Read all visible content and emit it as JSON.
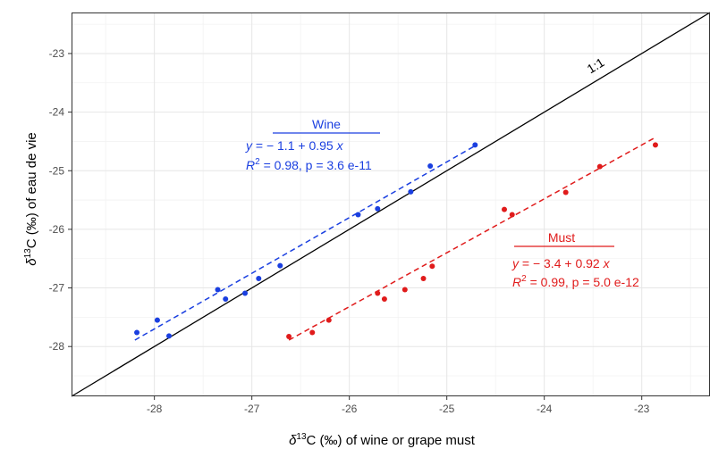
{
  "chart_data": {
    "type": "scatter",
    "xlabel_prefix": "δ",
    "xlabel_sup": "13",
    "xlabel_rest": "C (‰) of wine or grape must",
    "ylabel_prefix": "δ",
    "ylabel_sup": "13",
    "ylabel_rest": "C (‰) of eau de vie",
    "xlim": [
      -28.85,
      -22.3
    ],
    "ylim": [
      -28.85,
      -22.3
    ],
    "x_ticks": [
      -28,
      -27,
      -26,
      -25,
      -24,
      -23
    ],
    "y_ticks": [
      -28,
      -27,
      -26,
      -25,
      -24,
      -23
    ],
    "grid": true,
    "identity_line_label": "1:1",
    "series": [
      {
        "name": "Wine",
        "color": "#1a3fe0",
        "points": [
          [
            -28.18,
            -27.76
          ],
          [
            -27.97,
            -27.55
          ],
          [
            -27.85,
            -27.82
          ],
          [
            -27.35,
            -27.03
          ],
          [
            -27.27,
            -27.19
          ],
          [
            -27.07,
            -27.09
          ],
          [
            -26.93,
            -26.84
          ],
          [
            -26.71,
            -26.62
          ],
          [
            -25.91,
            -25.75
          ],
          [
            -25.71,
            -25.65
          ],
          [
            -25.37,
            -25.36
          ],
          [
            -25.17,
            -24.92
          ],
          [
            -24.71,
            -24.56
          ]
        ],
        "fit": {
          "intercept": -1.1,
          "slope": 0.95,
          "x_range": [
            -28.2,
            -24.7
          ]
        },
        "annotation": {
          "title": "Wine",
          "eq_y": "y",
          "eq_rest": " = − 1.1 + 0.95 ",
          "eq_x": "x",
          "r2_label": "R",
          "r2_sup": "2",
          "r2_rest": " = 0.98, p = 3.6 e-11"
        }
      },
      {
        "name": "Must",
        "color": "#e01b1b",
        "points": [
          [
            -26.62,
            -27.83
          ],
          [
            -26.38,
            -27.76
          ],
          [
            -26.21,
            -27.55
          ],
          [
            -25.71,
            -27.09
          ],
          [
            -25.64,
            -27.19
          ],
          [
            -25.43,
            -27.03
          ],
          [
            -25.24,
            -26.84
          ],
          [
            -25.15,
            -26.63
          ],
          [
            -24.41,
            -25.66
          ],
          [
            -24.33,
            -25.75
          ],
          [
            -23.78,
            -25.37
          ],
          [
            -23.43,
            -24.93
          ],
          [
            -22.86,
            -24.56
          ]
        ],
        "fit": {
          "intercept": -3.4,
          "slope": 0.92,
          "x_range": [
            -26.62,
            -22.86
          ]
        },
        "annotation": {
          "title": "Must",
          "eq_y": "y",
          "eq_rest": " = − 3.4 + 0.92 ",
          "eq_x": "x",
          "r2_label": "R",
          "r2_sup": "2",
          "r2_rest": " = 0.99, p = 5.0 e-12"
        }
      }
    ]
  }
}
